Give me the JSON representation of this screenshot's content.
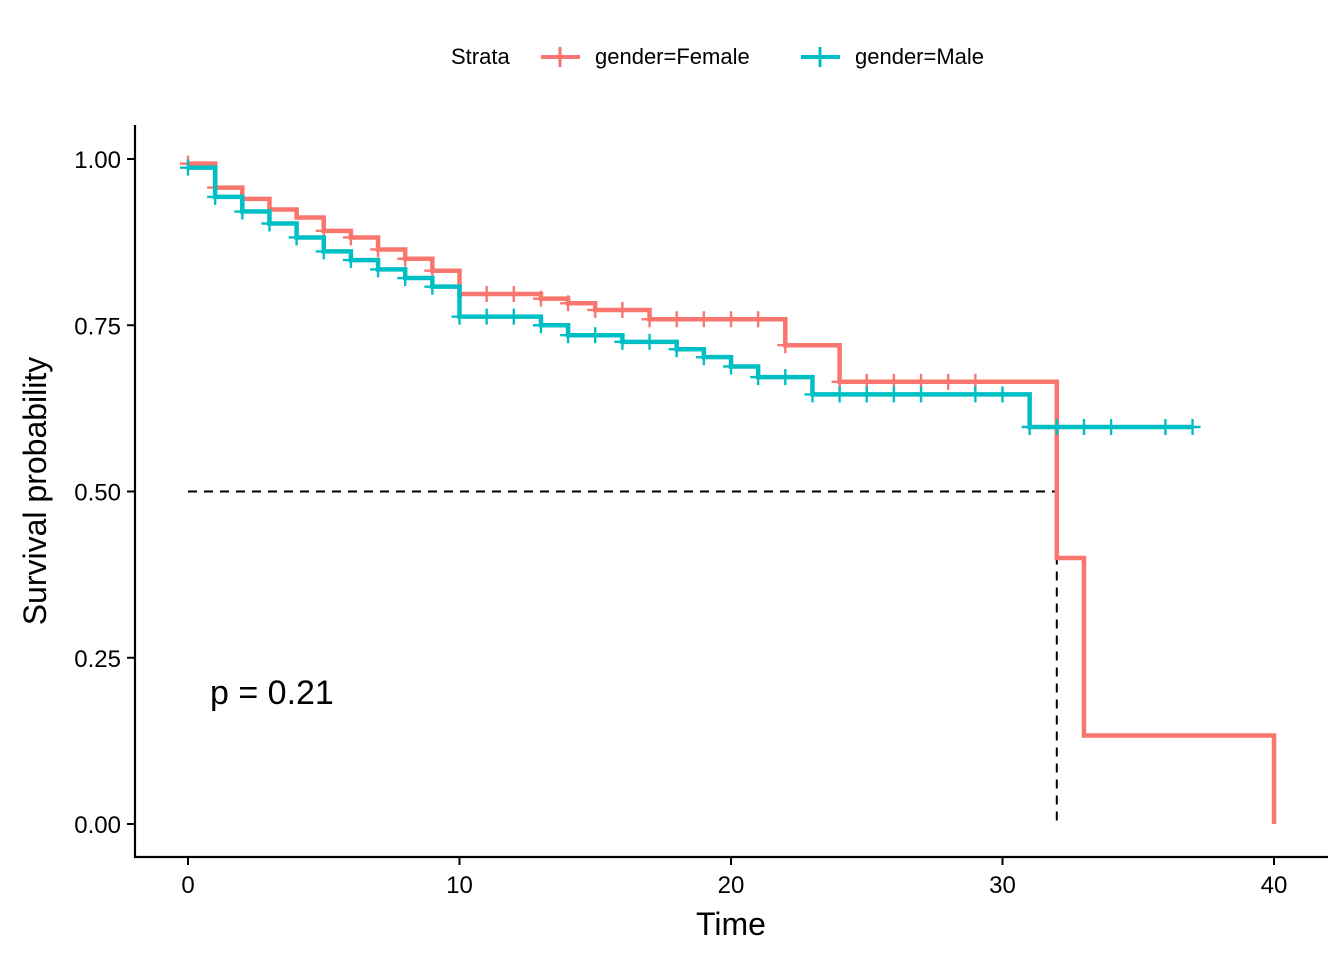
{
  "chart_data": {
    "type": "line",
    "subtype": "kaplan-meier step",
    "xlabel": "Time",
    "ylabel": "Survival probability",
    "xlim": [
      -2,
      42
    ],
    "ylim": [
      -0.05,
      1.05
    ],
    "x_ticks": [
      0,
      10,
      20,
      30,
      40
    ],
    "x_tick_labels": [
      "0",
      "10",
      "20",
      "30",
      "40"
    ],
    "y_ticks": [
      0,
      0.25,
      0.5,
      0.75,
      1.0
    ],
    "y_tick_labels": [
      "0.00",
      "0.25",
      "0.50",
      "0.75",
      "1.00"
    ],
    "grid": false,
    "legend": {
      "title": "Strata",
      "position": "top"
    },
    "annotation": "p = 0.21",
    "median_line": {
      "y": 0.5,
      "x": 32
    },
    "series": [
      {
        "name": "gender=Female",
        "color": "#F8766D",
        "steps": [
          [
            0,
            0.993
          ],
          [
            1,
            0.957
          ],
          [
            2,
            0.94
          ],
          [
            3,
            0.924
          ],
          [
            4,
            0.912
          ],
          [
            5,
            0.892
          ],
          [
            6,
            0.882
          ],
          [
            7,
            0.864
          ],
          [
            8,
            0.85
          ],
          [
            9,
            0.832
          ],
          [
            10,
            0.797
          ],
          [
            13,
            0.79
          ],
          [
            14,
            0.783
          ],
          [
            15,
            0.773
          ],
          [
            17,
            0.759
          ],
          [
            22,
            0.72
          ],
          [
            24,
            0.665
          ],
          [
            32,
            0.4
          ],
          [
            33,
            0.133
          ],
          [
            40,
            0.0
          ]
        ],
        "censor_x": [
          0,
          1,
          5,
          6,
          7,
          8,
          9,
          11,
          12,
          13,
          14,
          15,
          16,
          17,
          18,
          19,
          20,
          21,
          22,
          24,
          25,
          26,
          27,
          28,
          29
        ]
      },
      {
        "name": "gender=Male",
        "color": "#00BFC4",
        "steps": [
          [
            0,
            0.987
          ],
          [
            1,
            0.943
          ],
          [
            2,
            0.921
          ],
          [
            3,
            0.903
          ],
          [
            4,
            0.882
          ],
          [
            5,
            0.861
          ],
          [
            6,
            0.848
          ],
          [
            7,
            0.834
          ],
          [
            8,
            0.821
          ],
          [
            9,
            0.808
          ],
          [
            10,
            0.763
          ],
          [
            13,
            0.75
          ],
          [
            14,
            0.735
          ],
          [
            16,
            0.725
          ],
          [
            18,
            0.714
          ],
          [
            19,
            0.702
          ],
          [
            20,
            0.688
          ],
          [
            21,
            0.672
          ],
          [
            23,
            0.646
          ],
          [
            31,
            0.597
          ]
        ],
        "end_x": 37,
        "censor_x": [
          0,
          1,
          2,
          3,
          4,
          5,
          6,
          7,
          8,
          9,
          10,
          11,
          12,
          13,
          14,
          15,
          16,
          17,
          18,
          19,
          20,
          21,
          22,
          23,
          24,
          25,
          26,
          27,
          29,
          30,
          31,
          32,
          33,
          34,
          36,
          37
        ]
      }
    ]
  }
}
